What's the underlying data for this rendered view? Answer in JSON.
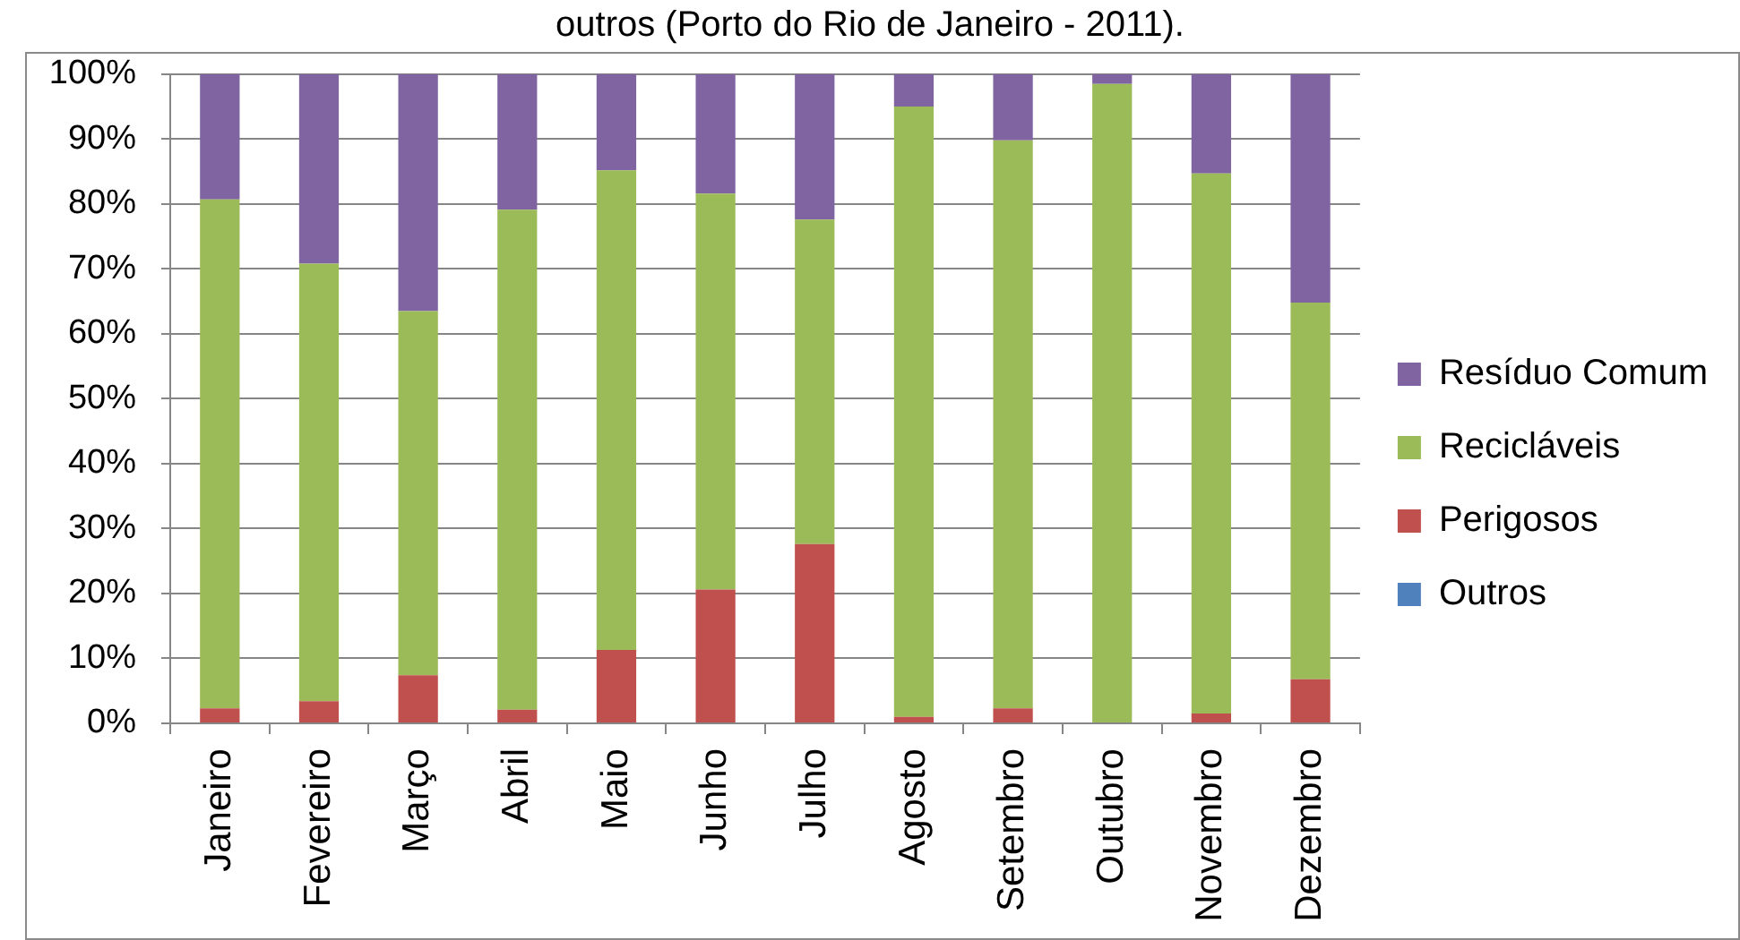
{
  "chart_data": {
    "type": "bar",
    "title": "outros (Porto do Rio de Janeiro - 2011).",
    "categories": [
      "Janeiro",
      "Fevereiro",
      "Março",
      "Abril",
      "Maio",
      "Junho",
      "Julho",
      "Agosto",
      "Setembro",
      "Outubro",
      "Novembro",
      "Dezembro"
    ],
    "series": [
      {
        "name": "Outros",
        "color": "#4f81bd",
        "values": [
          0,
          0,
          0,
          0,
          0,
          0,
          0,
          0,
          0,
          0,
          0,
          0
        ]
      },
      {
        "name": "Perigosos",
        "color": "#c0504d",
        "values": [
          2.3,
          3.4,
          7.4,
          2.1,
          11.3,
          20.6,
          27.6,
          1.0,
          2.3,
          0,
          1.5,
          6.8
        ]
      },
      {
        "name": "Recicláveis",
        "color": "#9bbb59",
        "values": [
          78.4,
          67.4,
          56.1,
          77.0,
          73.9,
          61.0,
          50.0,
          94.0,
          87.5,
          98.5,
          83.2,
          58.0
        ]
      },
      {
        "name": "Resíduo Comum",
        "color": "#8064a2",
        "values": [
          19.3,
          29.2,
          36.5,
          20.9,
          14.8,
          18.4,
          22.4,
          5.0,
          10.2,
          1.5,
          15.3,
          35.2
        ]
      }
    ],
    "stacked": true,
    "ylim": [
      0,
      100
    ],
    "yticks": [
      {
        "value": 0,
        "label": "0%"
      },
      {
        "value": 10,
        "label": "10%"
      },
      {
        "value": 20,
        "label": "20%"
      },
      {
        "value": 30,
        "label": "30%"
      },
      {
        "value": 40,
        "label": "40%"
      },
      {
        "value": 50,
        "label": "50%"
      },
      {
        "value": 60,
        "label": "60%"
      },
      {
        "value": 70,
        "label": "70%"
      },
      {
        "value": 80,
        "label": "80%"
      },
      {
        "value": 90,
        "label": "90%"
      },
      {
        "value": 100,
        "label": "100%"
      }
    ],
    "grid": "y",
    "legend": "right"
  }
}
